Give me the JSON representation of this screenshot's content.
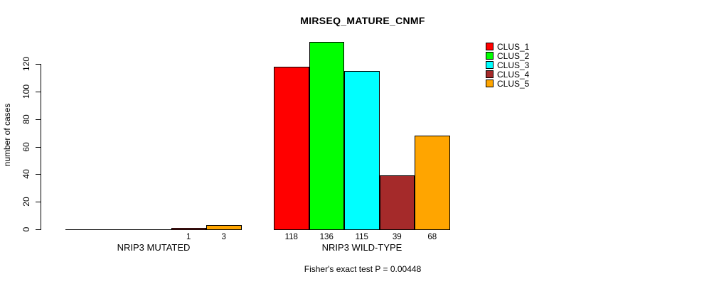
{
  "chart_data": {
    "type": "bar",
    "title": "MIRSEQ_MATURE_CNMF",
    "ylabel": "number of cases",
    "xlabel": "",
    "footer": "Fisher's exact test P = 0.00448",
    "yticks": [
      0,
      20,
      40,
      60,
      80,
      100,
      120
    ],
    "ylim": [
      0,
      140
    ],
    "grid": false,
    "legend_position": "top-right",
    "categories": [
      "NRIP3 MUTATED",
      "NRIP3 WILD-TYPE"
    ],
    "series": [
      {
        "name": "CLUS_1",
        "color": "#FF0000",
        "values": [
          0,
          118
        ]
      },
      {
        "name": "CLUS_2",
        "color": "#00FF00",
        "values": [
          0,
          136
        ]
      },
      {
        "name": "CLUS_3",
        "color": "#00FFFF",
        "values": [
          0,
          115
        ]
      },
      {
        "name": "CLUS_4",
        "color": "#A52A2A",
        "values": [
          1,
          39
        ]
      },
      {
        "name": "CLUS_5",
        "color": "#FFA500",
        "values": [
          3,
          68
        ]
      }
    ]
  },
  "colors": {
    "background": "#FFFFFF",
    "axis": "#000000",
    "text": "#000000",
    "bar_border": "#000000"
  }
}
